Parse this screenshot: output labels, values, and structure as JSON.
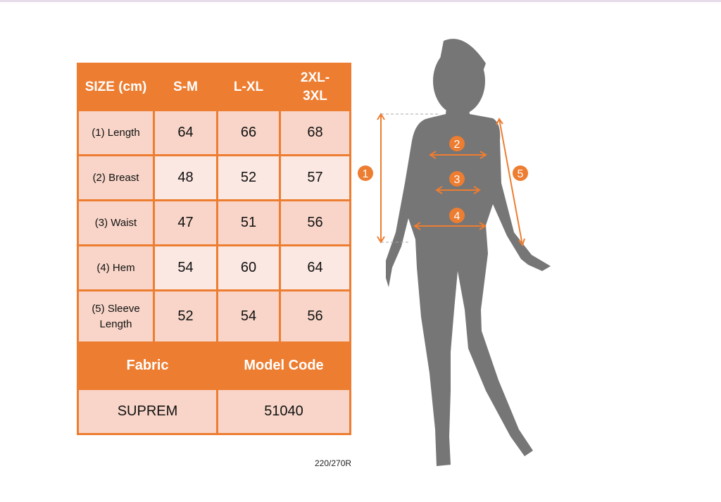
{
  "header": {
    "size": "SIZE (cm)",
    "cols": [
      "S-M",
      "L-XL",
      "2XL-3XL"
    ]
  },
  "rows": [
    {
      "label": "(1) Length",
      "values": [
        "64",
        "66",
        "68"
      ]
    },
    {
      "label": "(2) Breast",
      "values": [
        "48",
        "52",
        "57"
      ]
    },
    {
      "label": "(3) Waist",
      "values": [
        "47",
        "51",
        "56"
      ]
    },
    {
      "label": "(4) Hem",
      "values": [
        "54",
        "60",
        "64"
      ]
    },
    {
      "label": "(5) Sleeve Length",
      "values": [
        "52",
        "54",
        "56"
      ]
    }
  ],
  "footer": {
    "fabric_label": "Fabric",
    "model_label": "Model Code",
    "fabric": "SUPREM",
    "model": "51040"
  },
  "code": "220/270R",
  "markers": [
    "1",
    "2",
    "3",
    "4",
    "5"
  ],
  "colors": {
    "accent": "#ed7d31",
    "silhouette": "#767676"
  }
}
